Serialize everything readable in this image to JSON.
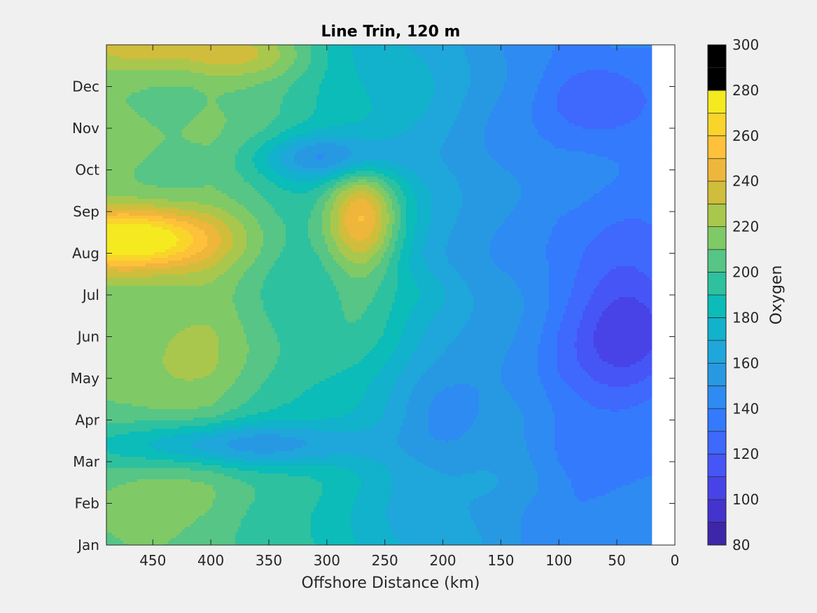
{
  "chart_data": {
    "type": "heatmap",
    "title": "Line Trin, 120 m",
    "xlabel": "Offshore Distance (km)",
    "ylabel": "",
    "colorbar_label": "Oxygen",
    "x_reversed": true,
    "xlim": [
      0,
      490
    ],
    "x_ticks": [
      450,
      400,
      350,
      300,
      250,
      200,
      150,
      100,
      50,
      0
    ],
    "y_ticks": [
      "Jan",
      "Feb",
      "Mar",
      "Apr",
      "May",
      "Jun",
      "Jul",
      "Aug",
      "Sep",
      "Oct",
      "Nov",
      "Dec"
    ],
    "colorbar_ticks": [
      80,
      100,
      120,
      140,
      160,
      180,
      200,
      220,
      240,
      260,
      280,
      300
    ],
    "clim": [
      80,
      300
    ],
    "level_step": 10,
    "data_x_range": [
      20,
      490
    ],
    "colormap": [
      "#3e26a8",
      "#4433cd",
      "#4743e7",
      "#4655f6",
      "#3f68fd",
      "#347afd",
      "#2e8bf2",
      "#2799e3",
      "#1fa6da",
      "#12b1cc",
      "#0bbcb8",
      "#2ec19f",
      "#56c585",
      "#80c967",
      "#a9c74c",
      "#d0bd3b",
      "#eeb63b",
      "#fec13a",
      "#f9d42b",
      "#f5e920"
    ],
    "missing_color": "#ffffff",
    "grid": false
  }
}
